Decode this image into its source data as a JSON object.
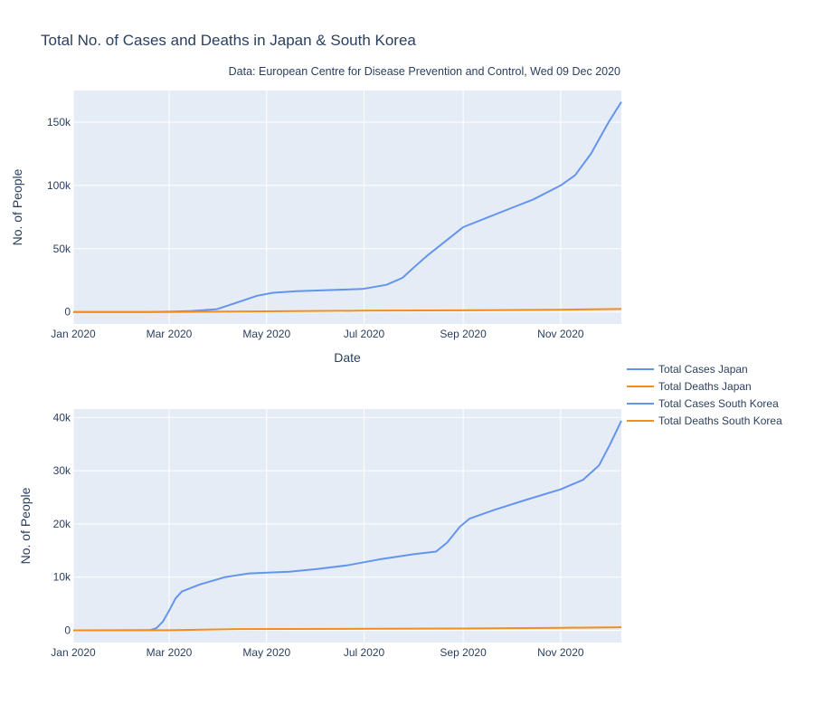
{
  "title": "Total No. of Cases and Deaths in Japan & South Korea",
  "subtitle": "Data: European Centre for Disease Prevention and Control, Wed 09 Dec 2020",
  "colors": {
    "cases": "#6495ed",
    "deaths": "#f28e1c"
  },
  "legend": {
    "placement": "right",
    "items": [
      "Total Cases Japan",
      "Total Deaths Japan",
      "Total Cases South Korea",
      "Total Deaths South Korea"
    ]
  },
  "chart_data": [
    {
      "type": "line",
      "xlabel": "Date",
      "ylabel": "No. of People",
      "x_ticks": [
        "2020-01-01",
        "2020-03-01",
        "2020-05-01",
        "2020-07-01",
        "2020-09-01",
        "2020-11-01"
      ],
      "x_tick_labels": [
        "Jan 2020",
        "Mar 2020",
        "May 2020",
        "Jul 2020",
        "Sep 2020",
        "Nov 2020"
      ],
      "xlim": [
        "2020-01-01",
        "2020-12-09"
      ],
      "ylim": [
        -9500,
        175000
      ],
      "y_ticks": [
        0,
        50000,
        100000,
        150000
      ],
      "y_tick_labels": [
        "0",
        "50k",
        "100k",
        "150k"
      ],
      "grid": true,
      "series": [
        {
          "name": "Total Cases Japan",
          "color": "#6495ed",
          "points": [
            [
              "2020-01-01",
              0
            ],
            [
              "2020-01-20",
              5
            ],
            [
              "2020-02-15",
              40
            ],
            [
              "2020-03-01",
              250
            ],
            [
              "2020-03-15",
              800
            ],
            [
              "2020-03-31",
              2200
            ],
            [
              "2020-04-15",
              8500
            ],
            [
              "2020-04-25",
              12800
            ],
            [
              "2020-05-05",
              15200
            ],
            [
              "2020-05-20",
              16400
            ],
            [
              "2020-06-10",
              17300
            ],
            [
              "2020-06-30",
              18200
            ],
            [
              "2020-07-15",
              21500
            ],
            [
              "2020-07-25",
              27000
            ],
            [
              "2020-08-01",
              35000
            ],
            [
              "2020-08-10",
              45000
            ],
            [
              "2020-08-20",
              55000
            ],
            [
              "2020-09-01",
              67000
            ],
            [
              "2020-09-15",
              74000
            ],
            [
              "2020-10-01",
              82000
            ],
            [
              "2020-10-15",
              89000
            ],
            [
              "2020-11-01",
              100000
            ],
            [
              "2020-11-10",
              108000
            ],
            [
              "2020-11-20",
              125000
            ],
            [
              "2020-12-01",
              150000
            ],
            [
              "2020-12-09",
              166000
            ]
          ]
        },
        {
          "name": "Total Deaths Japan",
          "color": "#f28e1c",
          "points": [
            [
              "2020-01-01",
              0
            ],
            [
              "2020-03-01",
              10
            ],
            [
              "2020-05-01",
              500
            ],
            [
              "2020-07-01",
              980
            ],
            [
              "2020-09-01",
              1300
            ],
            [
              "2020-11-01",
              1800
            ],
            [
              "2020-12-09",
              2400
            ]
          ]
        }
      ]
    },
    {
      "type": "line",
      "xlabel": "",
      "ylabel": "No. of People",
      "x_ticks": [
        "2020-01-01",
        "2020-03-01",
        "2020-05-01",
        "2020-07-01",
        "2020-09-01",
        "2020-11-01"
      ],
      "x_tick_labels": [
        "Jan 2020",
        "Mar 2020",
        "May 2020",
        "Jul 2020",
        "Sep 2020",
        "Nov 2020"
      ],
      "xlim": [
        "2020-01-01",
        "2020-12-09"
      ],
      "ylim": [
        -2300,
        41600
      ],
      "y_ticks": [
        0,
        10000,
        20000,
        30000,
        40000
      ],
      "y_tick_labels": [
        "0",
        "10k",
        "20k",
        "30k",
        "40k"
      ],
      "grid": true,
      "series": [
        {
          "name": "Total Cases South Korea",
          "color": "#6495ed",
          "points": [
            [
              "2020-01-01",
              0
            ],
            [
              "2020-02-18",
              30
            ],
            [
              "2020-02-22",
              400
            ],
            [
              "2020-02-26",
              1600
            ],
            [
              "2020-03-01",
              3700
            ],
            [
              "2020-03-05",
              6000
            ],
            [
              "2020-03-09",
              7300
            ],
            [
              "2020-03-20",
              8600
            ],
            [
              "2020-04-05",
              10000
            ],
            [
              "2020-04-20",
              10700
            ],
            [
              "2020-05-15",
              11000
            ],
            [
              "2020-06-01",
              11500
            ],
            [
              "2020-06-20",
              12200
            ],
            [
              "2020-07-10",
              13300
            ],
            [
              "2020-08-01",
              14300
            ],
            [
              "2020-08-15",
              14800
            ],
            [
              "2020-08-22",
              16500
            ],
            [
              "2020-08-30",
              19500
            ],
            [
              "2020-09-05",
              21000
            ],
            [
              "2020-09-20",
              22600
            ],
            [
              "2020-10-10",
              24500
            ],
            [
              "2020-11-01",
              26500
            ],
            [
              "2020-11-15",
              28300
            ],
            [
              "2020-11-25",
              31000
            ],
            [
              "2020-12-02",
              35000
            ],
            [
              "2020-12-09",
              39400
            ]
          ]
        },
        {
          "name": "Total Deaths South Korea",
          "color": "#f28e1c",
          "points": [
            [
              "2020-01-01",
              0
            ],
            [
              "2020-03-01",
              20
            ],
            [
              "2020-04-15",
              230
            ],
            [
              "2020-05-15",
              260
            ],
            [
              "2020-07-01",
              290
            ],
            [
              "2020-09-01",
              330
            ],
            [
              "2020-11-01",
              480
            ],
            [
              "2020-12-09",
              570
            ]
          ]
        }
      ]
    }
  ]
}
